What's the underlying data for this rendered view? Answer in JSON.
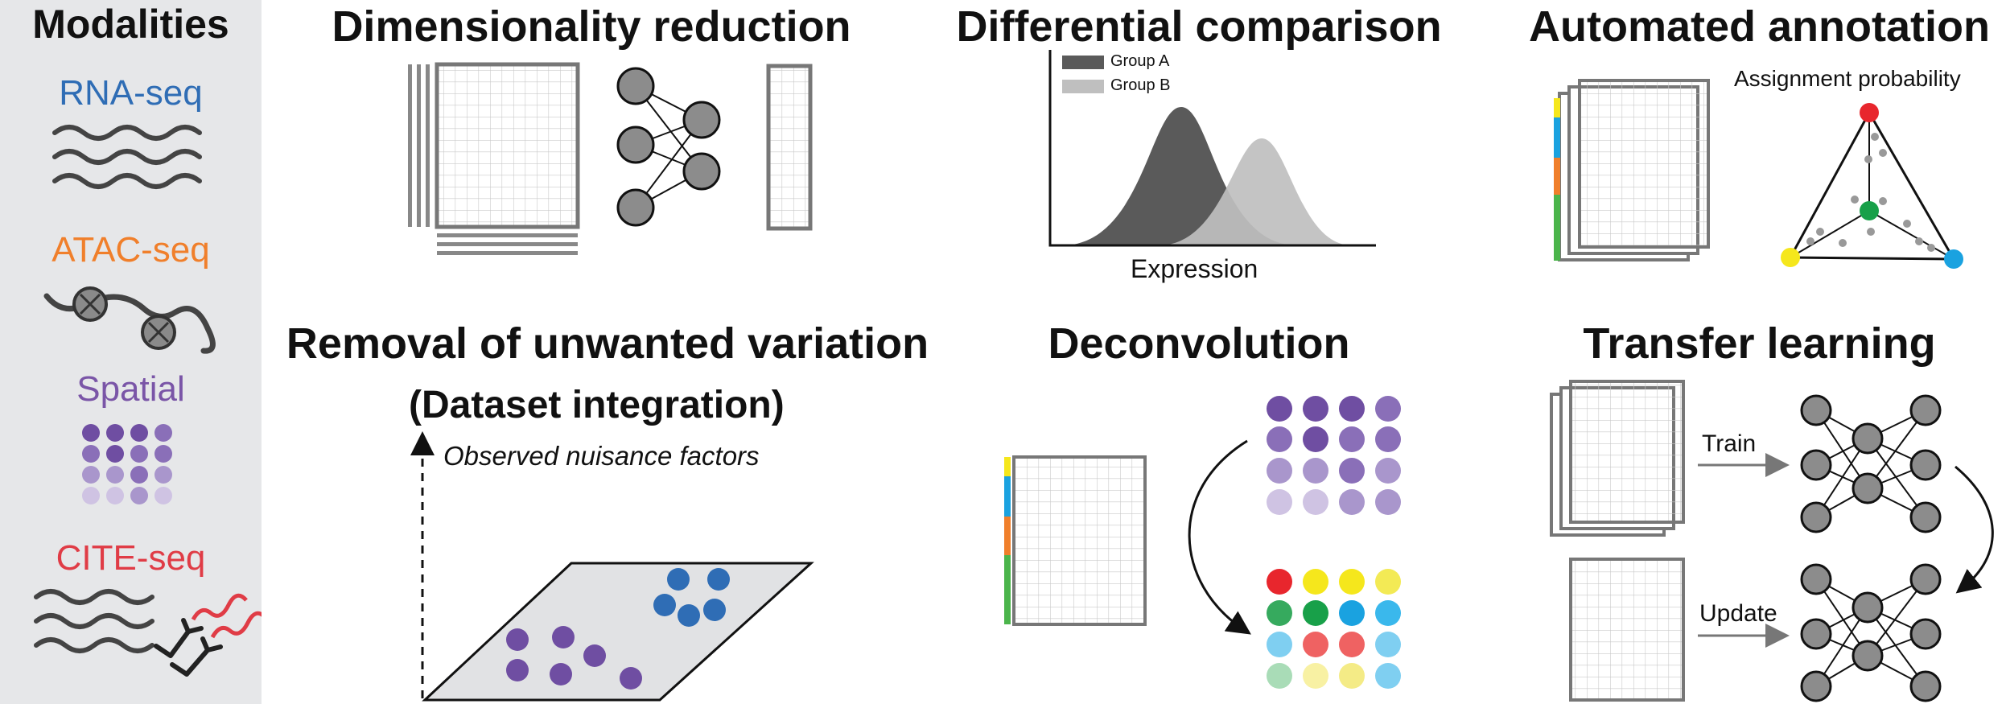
{
  "sidebar": {
    "title": "Modalities",
    "items": [
      {
        "label": "RNA-seq",
        "color": "#2f6db5"
      },
      {
        "label": "ATAC-seq",
        "color": "#f07f2b"
      },
      {
        "label": "Spatial",
        "color": "#7a55a7"
      },
      {
        "label": "CITE-seq",
        "color": "#e03c46"
      }
    ]
  },
  "panels": {
    "dimensionality_reduction": {
      "title": "Dimensionality reduction"
    },
    "differential_comparison": {
      "title": "Differential comparison",
      "legend": [
        "Group A",
        "Group B"
      ],
      "xlabel": "Expression"
    },
    "automated_annotation": {
      "title": "Automated annotation",
      "caption": "Assignment probability"
    },
    "removal_unwanted_variation": {
      "title": "Removal of unwanted variation",
      "subtitle": "(Dataset integration)",
      "axis_label": "Observed nuisance factors"
    },
    "deconvolution": {
      "title": "Deconvolution"
    },
    "transfer_learning": {
      "title": "Transfer learning",
      "train_label": "Train",
      "update_label": "Update"
    }
  },
  "colors": {
    "panel_bg": "#e6e7e9",
    "dark_gray": "#595959",
    "light_gray": "#bfbfbf",
    "purple": "#6f4ea2",
    "blue": "#2f6db5",
    "red": "#e8262d",
    "green": "#18a049",
    "yellow": "#f5e71c",
    "cyan": "#1aa2e0",
    "orange": "#f07f2b"
  }
}
